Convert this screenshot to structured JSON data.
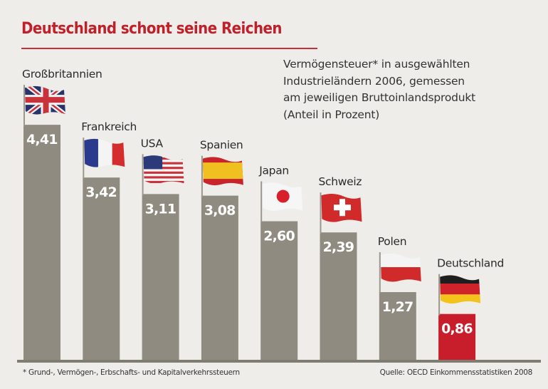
{
  "chart_data": {
    "type": "bar",
    "title": "Deutschland schont seine Reichen",
    "subtitle_lines": [
      "Vermögensteuer* in ausgewählten",
      "Industrieländern 2006, gemessen",
      "am jeweiligen Bruttoinlandsprodukt",
      "(Anteil in Prozent)"
    ],
    "xlabel": "",
    "ylabel": "Anteil in Prozent",
    "ylim": [
      0,
      4.5
    ],
    "grid": false,
    "legend": "none",
    "categories": [
      "Großbritannien",
      "Frankreich",
      "USA",
      "Spanien",
      "Japan",
      "Schweiz",
      "Polen",
      "Deutschland"
    ],
    "values": [
      4.41,
      3.42,
      3.11,
      3.08,
      2.6,
      2.39,
      1.27,
      0.86
    ],
    "value_labels": [
      "4,41",
      "3,42",
      "3,11",
      "3,08",
      "2,60",
      "2,39",
      "1,27",
      "0,86"
    ],
    "flags": [
      "uk-flag",
      "france-flag",
      "usa-flag",
      "spain-flag",
      "japan-flag",
      "switzerland-flag",
      "poland-flag",
      "germany-flag"
    ],
    "highlight_category": "Deutschland",
    "colors": {
      "bar": "#8f8b80",
      "highlight": "#c81d2a",
      "title": "#c0202a",
      "label_text": "#ffffff"
    }
  },
  "footnote": "* Grund-, Vermögen-, Erbschafts- und Kapitalverkehrssteuern",
  "source": "Quelle: OECD Einkommensstatistiken 2008"
}
